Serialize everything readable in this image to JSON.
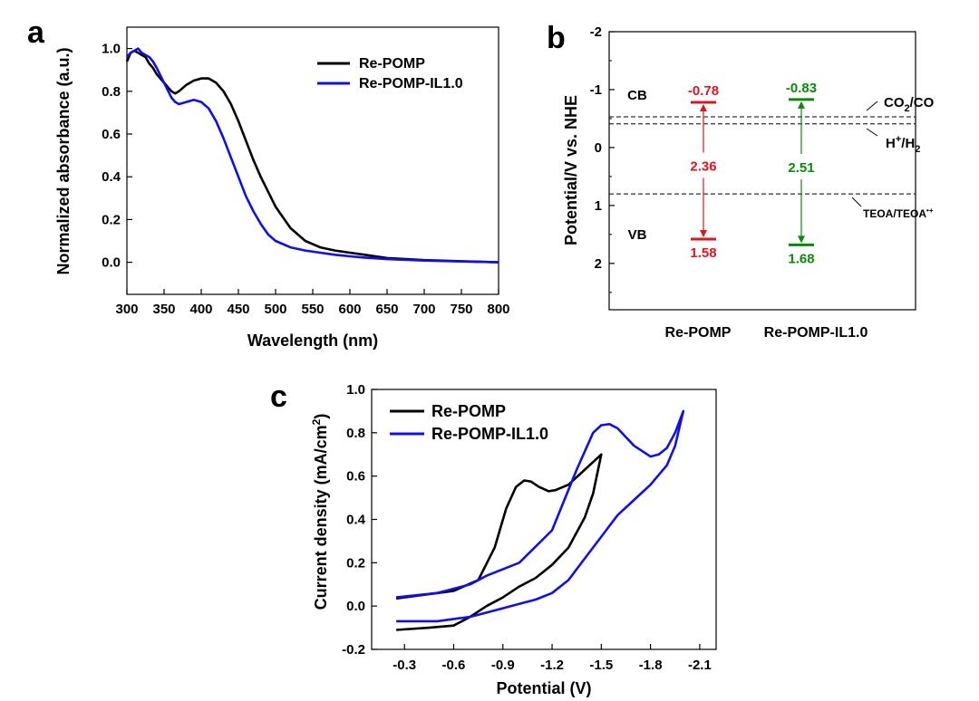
{
  "chart_data": [
    {
      "panel": "a",
      "type": "line",
      "xlabel": "Wavelength (nm)",
      "ylabel": "Normalized absorbance (a.u.)",
      "xlim": [
        300,
        800
      ],
      "ylim": [
        -0.15,
        1.1
      ],
      "xticks": [
        300,
        350,
        400,
        450,
        500,
        550,
        600,
        650,
        700,
        750,
        800
      ],
      "yticks": [
        "0.0",
        "0.2",
        "0.4",
        "0.6",
        "0.8",
        "1.0"
      ],
      "legend_position": "top-right",
      "series": [
        {
          "name": "Re-POMP",
          "color": "#000000",
          "x": [
            300,
            305,
            310,
            315,
            320,
            325,
            330,
            335,
            340,
            350,
            360,
            365,
            370,
            380,
            390,
            400,
            410,
            420,
            430,
            440,
            450,
            460,
            470,
            480,
            490,
            500,
            520,
            540,
            560,
            580,
            600,
            620,
            650,
            700,
            750,
            800
          ],
          "y": [
            0.94,
            0.98,
            0.99,
            0.98,
            0.97,
            0.96,
            0.93,
            0.91,
            0.88,
            0.84,
            0.8,
            0.79,
            0.8,
            0.83,
            0.85,
            0.86,
            0.86,
            0.84,
            0.8,
            0.74,
            0.66,
            0.57,
            0.48,
            0.4,
            0.33,
            0.26,
            0.16,
            0.1,
            0.07,
            0.055,
            0.045,
            0.035,
            0.02,
            0.01,
            0.005,
            0.0
          ]
        },
        {
          "name": "Re-POMP-IL1.0",
          "color": "#1010e6",
          "x": [
            300,
            305,
            310,
            315,
            320,
            325,
            330,
            335,
            340,
            350,
            360,
            365,
            370,
            380,
            390,
            400,
            410,
            420,
            430,
            440,
            450,
            460,
            470,
            480,
            490,
            500,
            520,
            540,
            560,
            580,
            600,
            620,
            650,
            700,
            750,
            800
          ],
          "y": [
            0.96,
            0.98,
            0.99,
            1.0,
            0.98,
            0.97,
            0.96,
            0.94,
            0.91,
            0.84,
            0.77,
            0.75,
            0.74,
            0.75,
            0.76,
            0.75,
            0.72,
            0.66,
            0.58,
            0.49,
            0.4,
            0.31,
            0.24,
            0.18,
            0.13,
            0.1,
            0.07,
            0.055,
            0.045,
            0.035,
            0.028,
            0.022,
            0.015,
            0.008,
            0.004,
            0.0
          ]
        }
      ]
    },
    {
      "panel": "b",
      "type": "energy-level diagram",
      "ylabel": "Potential/V vs. NHE",
      "ylim": [
        -2,
        2.8
      ],
      "yticks": [
        "-2",
        "-1",
        "0",
        "1",
        "2"
      ],
      "row_labels": {
        "cb": "CB",
        "vb": "VB"
      },
      "materials": [
        {
          "name": "Re-POMP",
          "color": "#e0141e",
          "cb": -0.78,
          "vb": 1.58,
          "cb_label": "-0.78",
          "vb_label": "1.58",
          "gap": "2.36"
        },
        {
          "name": "Re-POMP-IL1.0",
          "color": "#0a8a0a",
          "cb": -0.83,
          "vb": 1.68,
          "cb_label": "-0.83",
          "vb_label": "1.68",
          "gap": "2.51"
        }
      ],
      "reference_potentials": [
        {
          "couple_main": "CO",
          "couple_sub": "2",
          "couple_pre": "CO",
          "couple_post": "/CO",
          "value": -0.53
        },
        {
          "couple_pre": "H",
          "couple_sup": "+",
          "couple_mid": "/H",
          "couple_sub": "2",
          "value": -0.41
        },
        {
          "couple_pre": "TEOA/TEOA",
          "couple_sup": "•+",
          "value": 0.8
        }
      ]
    },
    {
      "panel": "c",
      "type": "line",
      "xlabel": "Potential (V)",
      "ylabel_main": "Current density (mA/cm",
      "ylabel_sup": "2",
      "ylabel_end": ")",
      "xlim": [
        -0.1,
        -2.2
      ],
      "ylim": [
        -0.2,
        1.0
      ],
      "xticks": [
        "-0.3",
        "-0.6",
        "-0.9",
        "-1.2",
        "-1.5",
        "-1.8",
        "-2.1"
      ],
      "yticks": [
        "-0.2",
        "0.0",
        "0.2",
        "0.4",
        "0.6",
        "0.8",
        "1.0"
      ],
      "legend_position": "top-left",
      "series": [
        {
          "name": "Re-POMP",
          "color": "#000000",
          "x": [
            -0.25,
            -0.4,
            -0.6,
            -0.75,
            -0.85,
            -0.92,
            -0.98,
            -1.03,
            -1.07,
            -1.12,
            -1.18,
            -1.22,
            -1.3,
            -1.4,
            -1.5,
            -1.45,
            -1.4,
            -1.3,
            -1.2,
            -1.1,
            -1.0,
            -0.9,
            -0.8,
            -0.7,
            -0.6,
            -0.45,
            -0.25
          ],
          "y": [
            0.035,
            0.05,
            0.07,
            0.12,
            0.27,
            0.45,
            0.55,
            0.58,
            0.575,
            0.55,
            0.53,
            0.535,
            0.56,
            0.63,
            0.7,
            0.52,
            0.41,
            0.27,
            0.19,
            0.13,
            0.09,
            0.04,
            0.0,
            -0.05,
            -0.09,
            -0.1,
            -0.11
          ]
        },
        {
          "name": "Re-POMP-IL1.0",
          "color": "#1010e6",
          "x": [
            -0.25,
            -0.5,
            -0.7,
            -0.8,
            -1.0,
            -1.2,
            -1.35,
            -1.45,
            -1.5,
            -1.55,
            -1.6,
            -1.7,
            -1.8,
            -1.85,
            -1.9,
            -1.95,
            -2.0,
            -1.95,
            -1.9,
            -1.8,
            -1.7,
            -1.6,
            -1.5,
            -1.4,
            -1.3,
            -1.2,
            -1.1,
            -1.0,
            -0.9,
            -0.7,
            -0.5,
            -0.25
          ],
          "y": [
            0.04,
            0.06,
            0.1,
            0.14,
            0.2,
            0.35,
            0.63,
            0.8,
            0.835,
            0.84,
            0.82,
            0.74,
            0.69,
            0.7,
            0.73,
            0.8,
            0.9,
            0.74,
            0.65,
            0.56,
            0.49,
            0.42,
            0.32,
            0.22,
            0.12,
            0.06,
            0.03,
            0.01,
            -0.01,
            -0.05,
            -0.07,
            -0.07
          ]
        }
      ]
    }
  ]
}
